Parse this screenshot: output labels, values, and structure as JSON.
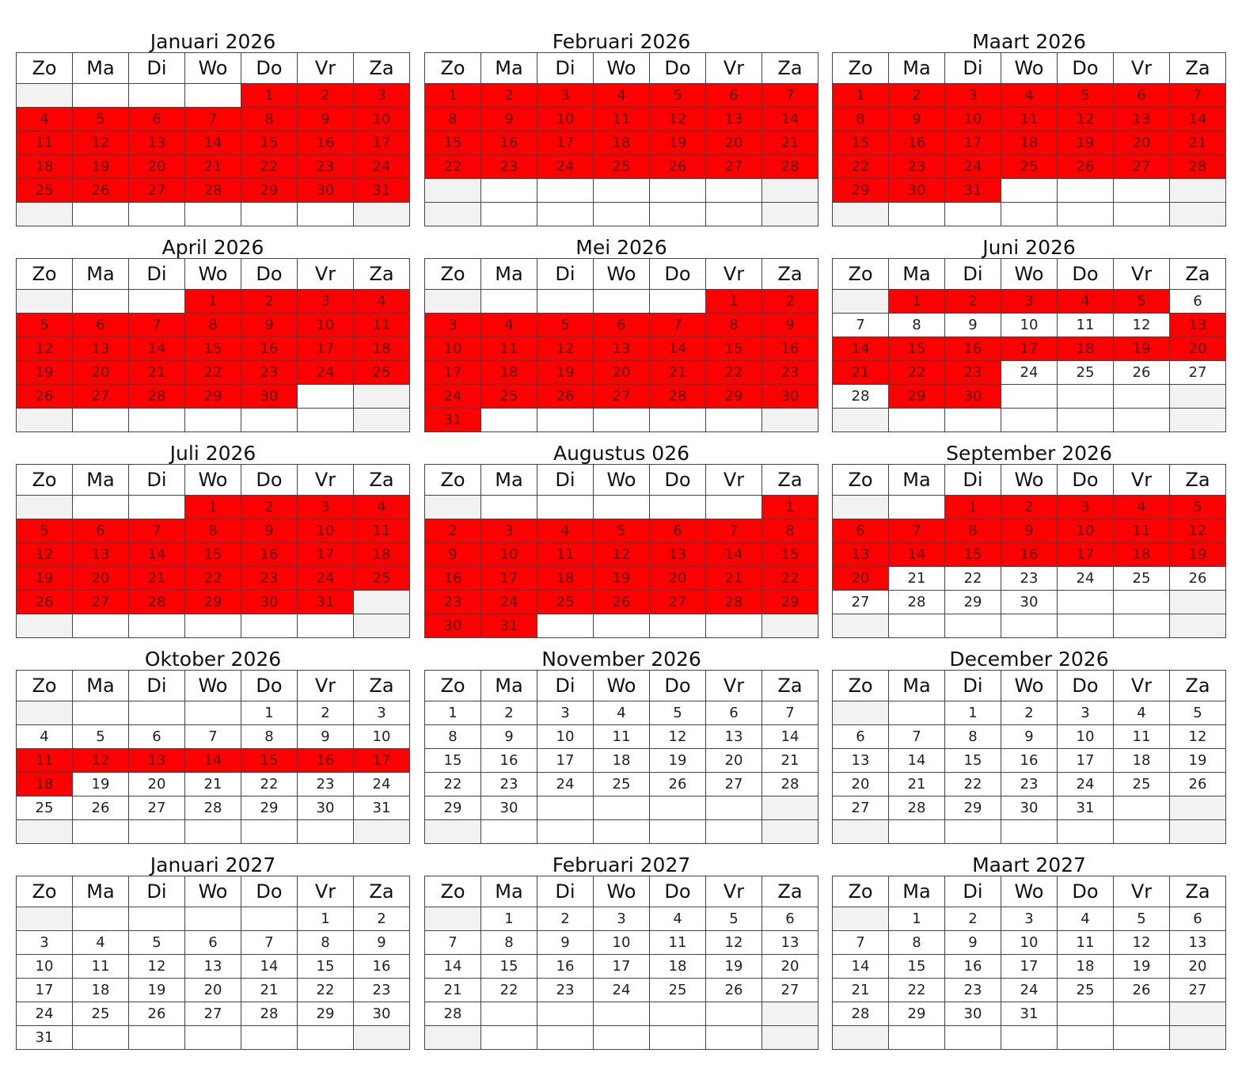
{
  "colors": {
    "highlight": "#ff0000",
    "weekend": "#f2f2f2",
    "border": "#444444"
  },
  "weekdays": [
    "Zo",
    "Ma",
    "Di",
    "Wo",
    "Do",
    "Vr",
    "Za"
  ],
  "months": [
    {
      "title": "Januari 2026",
      "start_weekday": 4,
      "days": 31,
      "highlighted": [
        [
          1,
          31
        ]
      ]
    },
    {
      "title": "Februari 2026",
      "start_weekday": 0,
      "days": 28,
      "highlighted": [
        [
          1,
          28
        ]
      ]
    },
    {
      "title": "Maart 2026",
      "start_weekday": 0,
      "days": 31,
      "highlighted": [
        [
          1,
          31
        ]
      ]
    },
    {
      "title": "April 2026",
      "start_weekday": 3,
      "days": 30,
      "highlighted": [
        [
          1,
          30
        ]
      ]
    },
    {
      "title": "Mei 2026",
      "start_weekday": 5,
      "days": 31,
      "highlighted": [
        [
          1,
          31
        ]
      ]
    },
    {
      "title": "Juni 2026",
      "start_weekday": 1,
      "days": 30,
      "highlighted": [
        [
          1,
          5
        ],
        [
          13,
          23
        ],
        [
          29,
          30
        ]
      ]
    },
    {
      "title": "Juli 2026",
      "start_weekday": 3,
      "days": 31,
      "highlighted": [
        [
          1,
          31
        ]
      ]
    },
    {
      "title": "Augustus 026",
      "start_weekday": 6,
      "days": 31,
      "highlighted": [
        [
          1,
          31
        ]
      ]
    },
    {
      "title": "September 2026",
      "start_weekday": 2,
      "days": 30,
      "highlighted": [
        [
          1,
          20
        ]
      ]
    },
    {
      "title": "Oktober 2026",
      "start_weekday": 4,
      "days": 31,
      "highlighted": [
        [
          11,
          18
        ]
      ]
    },
    {
      "title": "November 2026",
      "start_weekday": 0,
      "days": 30,
      "highlighted": []
    },
    {
      "title": "December 2026",
      "start_weekday": 2,
      "days": 31,
      "highlighted": []
    },
    {
      "title": "Januari 2027",
      "start_weekday": 5,
      "days": 31,
      "highlighted": []
    },
    {
      "title": "Februari 2027",
      "start_weekday": 1,
      "days": 28,
      "highlighted": []
    },
    {
      "title": "Maart 2027",
      "start_weekday": 1,
      "days": 31,
      "highlighted": []
    }
  ]
}
